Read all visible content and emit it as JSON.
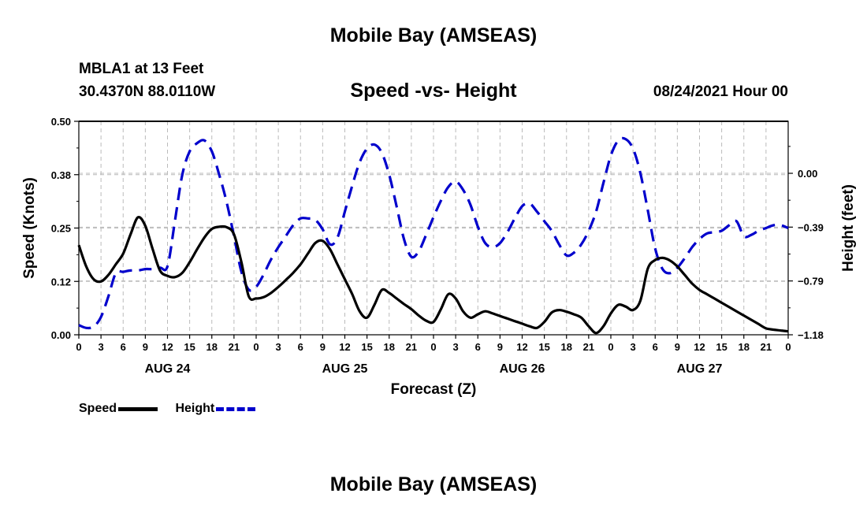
{
  "header": {
    "title": "Mobile Bay (AMSEAS)",
    "station": "MBLA1 at 13 Feet",
    "coordinates": "30.4370N  88.0110W",
    "chart_title": "Speed -vs- Height",
    "datetime": "08/24/2021 Hour 00"
  },
  "footer": {
    "title": "Mobile Bay (AMSEAS)"
  },
  "legend": [
    {
      "label": "Speed",
      "color": "#000000",
      "style": "solid"
    },
    {
      "label": "Height",
      "color": "#0000cc",
      "style": "dashed"
    }
  ],
  "chart_data": {
    "type": "line",
    "title": "Speed -vs- Height",
    "xlabel": "Forecast (Z)",
    "ylabel": "Speed (Knots)",
    "y2label": "Height (feet)",
    "xlim": [
      0,
      96
    ],
    "ylim": [
      0,
      0.5
    ],
    "y2lim": [
      -1.18,
      0.38
    ],
    "yticks": [
      "0.00",
      "0.12",
      "0.25",
      "0.38",
      "0.50"
    ],
    "y2ticks": [
      "−1.18",
      "−0.79",
      "−0.39",
      "0.00"
    ],
    "xtick_labels": [
      "0",
      "3",
      "6",
      "9",
      "12",
      "15",
      "18",
      "21",
      "0",
      "3",
      "6",
      "9",
      "12",
      "15",
      "18",
      "21",
      "0",
      "3",
      "6",
      "9",
      "12",
      "15",
      "18",
      "21",
      "0",
      "3",
      "6",
      "9",
      "12",
      "15",
      "18",
      "21",
      "0"
    ],
    "day_labels": [
      {
        "label": "AUG 24",
        "hour": 12
      },
      {
        "label": "AUG 25",
        "hour": 36
      },
      {
        "label": "AUG 26",
        "hour": 60
      },
      {
        "label": "AUG 27",
        "hour": 84
      }
    ],
    "grid": true,
    "series": [
      {
        "name": "Speed",
        "axis": "left",
        "color": "#000000",
        "dash": "solid",
        "x": [
          0,
          1,
          2,
          3,
          4,
          5,
          6,
          7,
          8,
          9,
          10,
          11,
          12,
          13,
          14,
          15,
          16,
          17,
          18,
          19,
          20,
          21,
          22,
          23,
          24,
          25,
          26,
          27,
          28,
          29,
          30,
          31,
          32,
          33,
          34,
          35,
          36,
          37,
          38,
          39,
          40,
          41,
          42,
          43,
          44,
          45,
          46,
          47,
          48,
          49,
          50,
          51,
          52,
          53,
          54,
          55,
          56,
          57,
          58,
          59,
          60,
          61,
          62,
          63,
          64,
          65,
          66,
          67,
          68,
          69,
          70,
          71,
          72,
          73,
          74,
          75,
          76,
          77,
          78,
          79,
          80,
          81,
          82,
          83,
          84,
          85,
          86,
          87,
          88,
          89,
          90,
          91,
          92,
          93,
          94,
          95,
          96
        ],
        "values": [
          0.21,
          0.16,
          0.13,
          0.125,
          0.14,
          0.165,
          0.19,
          0.235,
          0.275,
          0.255,
          0.2,
          0.15,
          0.138,
          0.135,
          0.145,
          0.17,
          0.2,
          0.228,
          0.248,
          0.253,
          0.252,
          0.235,
          0.17,
          0.09,
          0.085,
          0.088,
          0.098,
          0.112,
          0.128,
          0.145,
          0.165,
          0.19,
          0.215,
          0.22,
          0.2,
          0.165,
          0.13,
          0.095,
          0.055,
          0.04,
          0.07,
          0.105,
          0.098,
          0.085,
          0.072,
          0.06,
          0.045,
          0.033,
          0.03,
          0.06,
          0.095,
          0.085,
          0.055,
          0.04,
          0.048,
          0.055,
          0.05,
          0.044,
          0.038,
          0.032,
          0.026,
          0.02,
          0.016,
          0.03,
          0.052,
          0.058,
          0.054,
          0.048,
          0.04,
          0.02,
          0.004,
          0.02,
          0.05,
          0.07,
          0.066,
          0.058,
          0.08,
          0.155,
          0.175,
          0.18,
          0.174,
          0.16,
          0.14,
          0.12,
          0.105,
          0.095,
          0.085,
          0.075,
          0.065,
          0.055,
          0.045,
          0.035,
          0.025,
          0.015,
          0.012,
          0.01,
          0.008
        ]
      },
      {
        "name": "Height",
        "axis": "right",
        "color": "#0000cc",
        "dash": "dashed",
        "x": [
          0,
          1,
          2,
          3,
          4,
          5,
          6,
          7,
          8,
          9,
          10,
          11,
          12,
          13,
          14,
          15,
          16,
          17,
          18,
          19,
          20,
          21,
          22,
          23,
          24,
          25,
          26,
          27,
          28,
          29,
          30,
          31,
          32,
          33,
          34,
          35,
          36,
          37,
          38,
          39,
          40,
          41,
          42,
          43,
          44,
          45,
          46,
          47,
          48,
          49,
          50,
          51,
          52,
          53,
          54,
          55,
          56,
          57,
          58,
          59,
          60,
          61,
          62,
          63,
          64,
          65,
          66,
          67,
          68,
          69,
          70,
          71,
          72,
          73,
          74,
          75,
          76,
          77,
          78,
          79,
          80,
          81,
          82,
          83,
          84,
          85,
          86,
          87,
          88,
          89,
          90,
          91,
          92,
          93,
          94,
          95,
          96
        ],
        "values": [
          -1.11,
          -1.13,
          -1.12,
          -1.05,
          -0.9,
          -0.73,
          -0.72,
          -0.71,
          -0.71,
          -0.7,
          -0.7,
          -0.69,
          -0.68,
          -0.35,
          -0.01,
          0.16,
          0.22,
          0.24,
          0.16,
          -0.01,
          -0.21,
          -0.46,
          -0.72,
          -0.85,
          -0.83,
          -0.74,
          -0.63,
          -0.54,
          -0.46,
          -0.38,
          -0.33,
          -0.33,
          -0.34,
          -0.41,
          -0.52,
          -0.47,
          -0.28,
          -0.09,
          0.08,
          0.18,
          0.21,
          0.15,
          -0.01,
          -0.24,
          -0.48,
          -0.61,
          -0.57,
          -0.45,
          -0.32,
          -0.2,
          -0.1,
          -0.06,
          -0.12,
          -0.23,
          -0.39,
          -0.51,
          -0.54,
          -0.51,
          -0.43,
          -0.33,
          -0.24,
          -0.22,
          -0.28,
          -0.35,
          -0.42,
          -0.52,
          -0.6,
          -0.58,
          -0.52,
          -0.42,
          -0.28,
          -0.07,
          0.13,
          0.24,
          0.25,
          0.18,
          0.0,
          -0.27,
          -0.55,
          -0.7,
          -0.73,
          -0.69,
          -0.62,
          -0.54,
          -0.48,
          -0.44,
          -0.43,
          -0.42,
          -0.38,
          -0.35,
          -0.46,
          -0.45,
          -0.42,
          -0.4,
          -0.38,
          -0.38,
          -0.4
        ]
      }
    ]
  }
}
